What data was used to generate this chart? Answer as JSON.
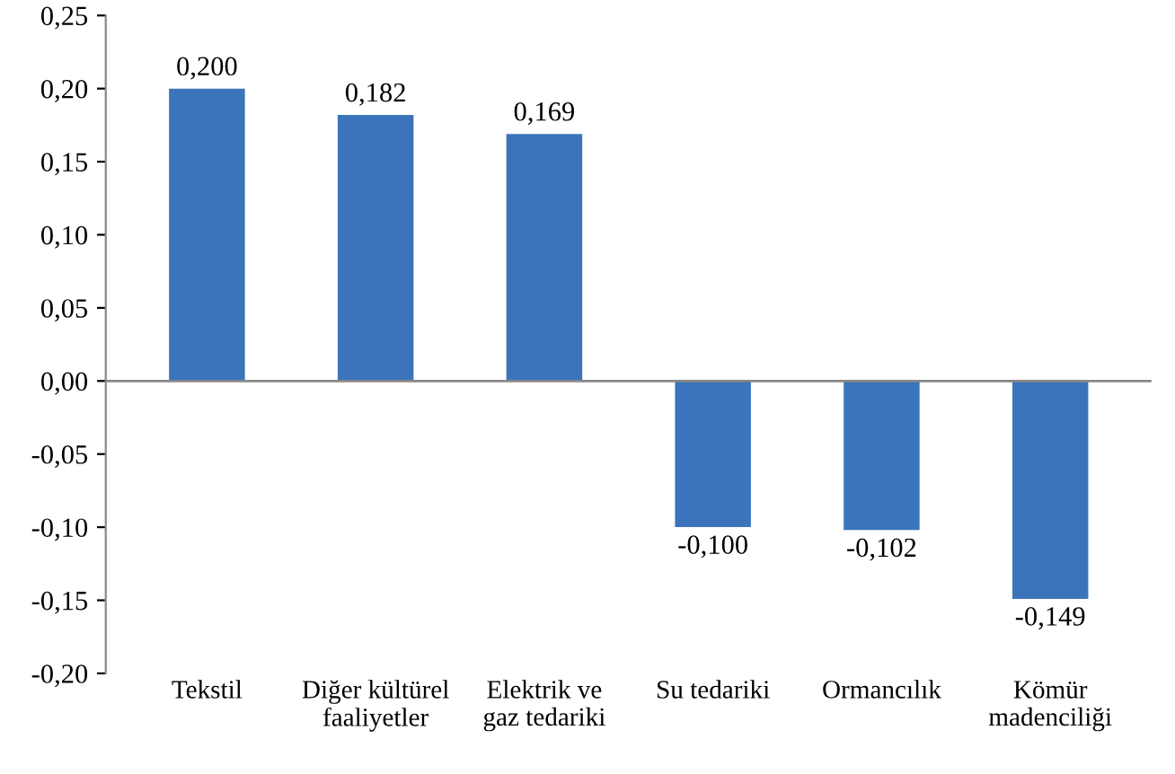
{
  "chart_data": {
    "type": "bar",
    "categories": [
      "Tekstil",
      "Diğer kültürel\nfaaliyetler",
      "Elektrik ve\ngaz tedariki",
      "Su tedariki",
      "Ormancılık",
      "Kömür\nmadenciliği"
    ],
    "values": [
      0.2,
      0.182,
      0.169,
      -0.1,
      -0.102,
      -0.149
    ],
    "value_labels": [
      "0,200",
      "0,182",
      "0,169",
      "-0,100",
      "-0,102",
      "-0,149"
    ],
    "color": "#3b74ba",
    "ylim": [
      -0.2,
      0.25
    ],
    "yticks": [
      {
        "value": -0.2,
        "label": "-0,20"
      },
      {
        "value": -0.15,
        "label": "-0,15"
      },
      {
        "value": -0.1,
        "label": "-0,10"
      },
      {
        "value": -0.05,
        "label": "-0,05"
      },
      {
        "value": 0.0,
        "label": "0,00"
      },
      {
        "value": 0.05,
        "label": "0,05"
      },
      {
        "value": 0.1,
        "label": "0,10"
      },
      {
        "value": 0.15,
        "label": "0,15"
      },
      {
        "value": 0.2,
        "label": "0,20"
      },
      {
        "value": 0.25,
        "label": "0,25"
      }
    ],
    "ref_lines": [
      {
        "axis": "y",
        "value": 0,
        "color": "#888888"
      }
    ],
    "legend": false
  }
}
